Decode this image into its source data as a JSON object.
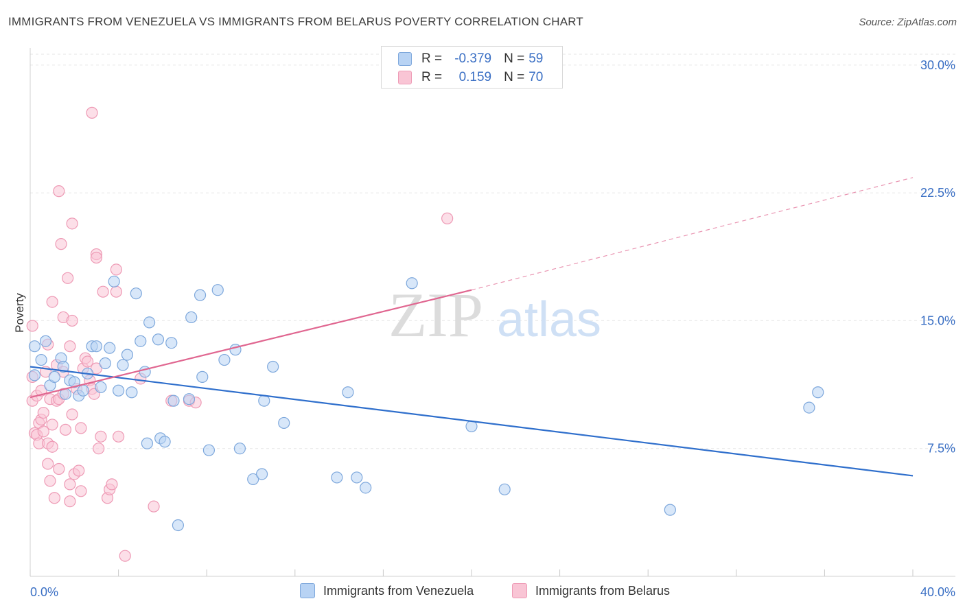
{
  "title": "IMMIGRANTS FROM VENEZUELA VS IMMIGRANTS FROM BELARUS POVERTY CORRELATION CHART",
  "source": "Source: ZipAtlas.com",
  "watermark": {
    "zip": "ZIP",
    "atlas": "atlas"
  },
  "colors": {
    "venezuela_fill": "#b8d3f4",
    "venezuela_stroke": "#7ea8dc",
    "venezuela_line": "#2f6fcc",
    "belarus_fill": "#f9c5d5",
    "belarus_stroke": "#ee9ab5",
    "belarus_line": "#e06690",
    "axis_label": "#3a6fc4",
    "grid": "#e6e6e6"
  },
  "legend": {
    "row1": {
      "r_label": "R = ",
      "r_value": "-0.379",
      "n_label": "N = ",
      "n_value": "59"
    },
    "row2": {
      "r_label": "R = ",
      "r_value": "0.159",
      "n_label": "N = ",
      "n_value": "70"
    }
  },
  "chart_data": {
    "type": "scatter",
    "title": "IMMIGRANTS FROM VENEZUELA VS IMMIGRANTS FROM BELARUS POVERTY CORRELATION CHART",
    "xlabel": "",
    "ylabel": "Poverty",
    "xlim": [
      0,
      40
    ],
    "ylim": [
      0,
      31
    ],
    "x_tick_labels": [
      "0.0%",
      "40.0%"
    ],
    "y_ticks": [
      7.5,
      15.0,
      22.5,
      30.0
    ],
    "y_tick_labels": [
      "7.5%",
      "15.0%",
      "22.5%",
      "30.0%"
    ],
    "grid": true,
    "legend_position": "top-center",
    "series": [
      {
        "name": "Immigrants from Venezuela",
        "r": -0.379,
        "n": 59,
        "trend": {
          "x": [
            0,
            40
          ],
          "y": [
            12.3,
            5.9
          ]
        },
        "points": [
          [
            0.2,
            13.5
          ],
          [
            0.2,
            11.8
          ],
          [
            0.5,
            12.7
          ],
          [
            0.7,
            13.8
          ],
          [
            0.9,
            11.2
          ],
          [
            1.1,
            11.7
          ],
          [
            1.4,
            12.8
          ],
          [
            1.5,
            12.3
          ],
          [
            1.6,
            10.7
          ],
          [
            1.8,
            11.5
          ],
          [
            2.0,
            11.4
          ],
          [
            2.2,
            10.6
          ],
          [
            2.4,
            10.9
          ],
          [
            2.6,
            11.9
          ],
          [
            2.8,
            13.5
          ],
          [
            3.0,
            13.5
          ],
          [
            3.2,
            11.1
          ],
          [
            3.4,
            12.5
          ],
          [
            3.6,
            13.4
          ],
          [
            3.8,
            17.3
          ],
          [
            4.0,
            10.9
          ],
          [
            4.2,
            12.4
          ],
          [
            4.4,
            13.0
          ],
          [
            4.6,
            10.8
          ],
          [
            4.8,
            16.6
          ],
          [
            5.0,
            13.8
          ],
          [
            5.2,
            12.0
          ],
          [
            5.3,
            7.8
          ],
          [
            5.4,
            14.9
          ],
          [
            5.8,
            13.9
          ],
          [
            5.9,
            8.1
          ],
          [
            6.1,
            7.9
          ],
          [
            6.4,
            13.7
          ],
          [
            6.5,
            10.3
          ],
          [
            6.7,
            3.0
          ],
          [
            7.2,
            10.4
          ],
          [
            7.3,
            15.2
          ],
          [
            7.7,
            16.5
          ],
          [
            7.8,
            11.7
          ],
          [
            8.1,
            7.4
          ],
          [
            8.5,
            16.8
          ],
          [
            8.8,
            12.7
          ],
          [
            9.3,
            13.3
          ],
          [
            9.5,
            7.5
          ],
          [
            10.1,
            5.7
          ],
          [
            10.5,
            6.0
          ],
          [
            10.6,
            10.3
          ],
          [
            11.0,
            12.3
          ],
          [
            11.5,
            9.0
          ],
          [
            13.9,
            5.8
          ],
          [
            14.4,
            10.8
          ],
          [
            14.8,
            5.8
          ],
          [
            15.2,
            5.2
          ],
          [
            17.3,
            17.2
          ],
          [
            20.0,
            8.8
          ],
          [
            21.5,
            5.1
          ],
          [
            29.0,
            3.9
          ],
          [
            35.3,
            9.9
          ],
          [
            35.7,
            10.8
          ]
        ]
      },
      {
        "name": "Immigrants from Belarus",
        "r": 0.159,
        "n": 70,
        "trend": {
          "x": [
            0,
            20
          ],
          "y": [
            10.5,
            16.8
          ]
        },
        "trend_extension": {
          "x": [
            20,
            40
          ],
          "y": [
            16.8,
            23.4
          ]
        },
        "points": [
          [
            0.1,
            14.7
          ],
          [
            0.1,
            11.7
          ],
          [
            0.1,
            10.3
          ],
          [
            0.2,
            8.4
          ],
          [
            0.3,
            10.6
          ],
          [
            0.3,
            8.3
          ],
          [
            0.4,
            9.0
          ],
          [
            0.4,
            7.8
          ],
          [
            0.5,
            9.2
          ],
          [
            0.5,
            10.9
          ],
          [
            0.6,
            8.5
          ],
          [
            0.6,
            9.6
          ],
          [
            0.7,
            12.0
          ],
          [
            0.8,
            13.6
          ],
          [
            0.8,
            7.8
          ],
          [
            0.8,
            6.6
          ],
          [
            0.9,
            5.6
          ],
          [
            0.9,
            10.4
          ],
          [
            1.0,
            16.1
          ],
          [
            1.0,
            8.9
          ],
          [
            1.0,
            7.6
          ],
          [
            1.1,
            4.6
          ],
          [
            1.2,
            12.4
          ],
          [
            1.2,
            10.3
          ],
          [
            1.3,
            22.6
          ],
          [
            1.3,
            6.3
          ],
          [
            1.3,
            10.4
          ],
          [
            1.4,
            19.5
          ],
          [
            1.5,
            15.2
          ],
          [
            1.5,
            12.0
          ],
          [
            1.5,
            10.7
          ],
          [
            1.6,
            8.6
          ],
          [
            1.7,
            17.5
          ],
          [
            1.8,
            13.5
          ],
          [
            1.8,
            4.4
          ],
          [
            1.8,
            5.4
          ],
          [
            1.9,
            20.7
          ],
          [
            1.9,
            15.0
          ],
          [
            1.9,
            9.5
          ],
          [
            2.0,
            6.0
          ],
          [
            2.1,
            11.0
          ],
          [
            2.2,
            6.2
          ],
          [
            2.3,
            8.7
          ],
          [
            2.3,
            5.0
          ],
          [
            2.4,
            12.2
          ],
          [
            2.5,
            12.8
          ],
          [
            2.6,
            12.6
          ],
          [
            2.7,
            11.5
          ],
          [
            2.8,
            27.2
          ],
          [
            2.8,
            11.0
          ],
          [
            2.9,
            10.7
          ],
          [
            3.0,
            18.9
          ],
          [
            3.0,
            18.7
          ],
          [
            3.0,
            12.2
          ],
          [
            3.1,
            7.5
          ],
          [
            3.2,
            8.2
          ],
          [
            3.3,
            16.7
          ],
          [
            3.5,
            4.6
          ],
          [
            3.6,
            5.1
          ],
          [
            3.7,
            5.4
          ],
          [
            3.9,
            18.0
          ],
          [
            3.9,
            16.7
          ],
          [
            4.0,
            8.2
          ],
          [
            4.3,
            1.2
          ],
          [
            5.0,
            11.6
          ],
          [
            5.6,
            4.1
          ],
          [
            6.4,
            10.3
          ],
          [
            7.2,
            10.3
          ],
          [
            7.5,
            10.2
          ],
          [
            18.9,
            21.0
          ]
        ]
      }
    ]
  },
  "bottom_legend": {
    "item1": "Immigrants from Venezuela",
    "item2": "Immigrants from Belarus"
  }
}
